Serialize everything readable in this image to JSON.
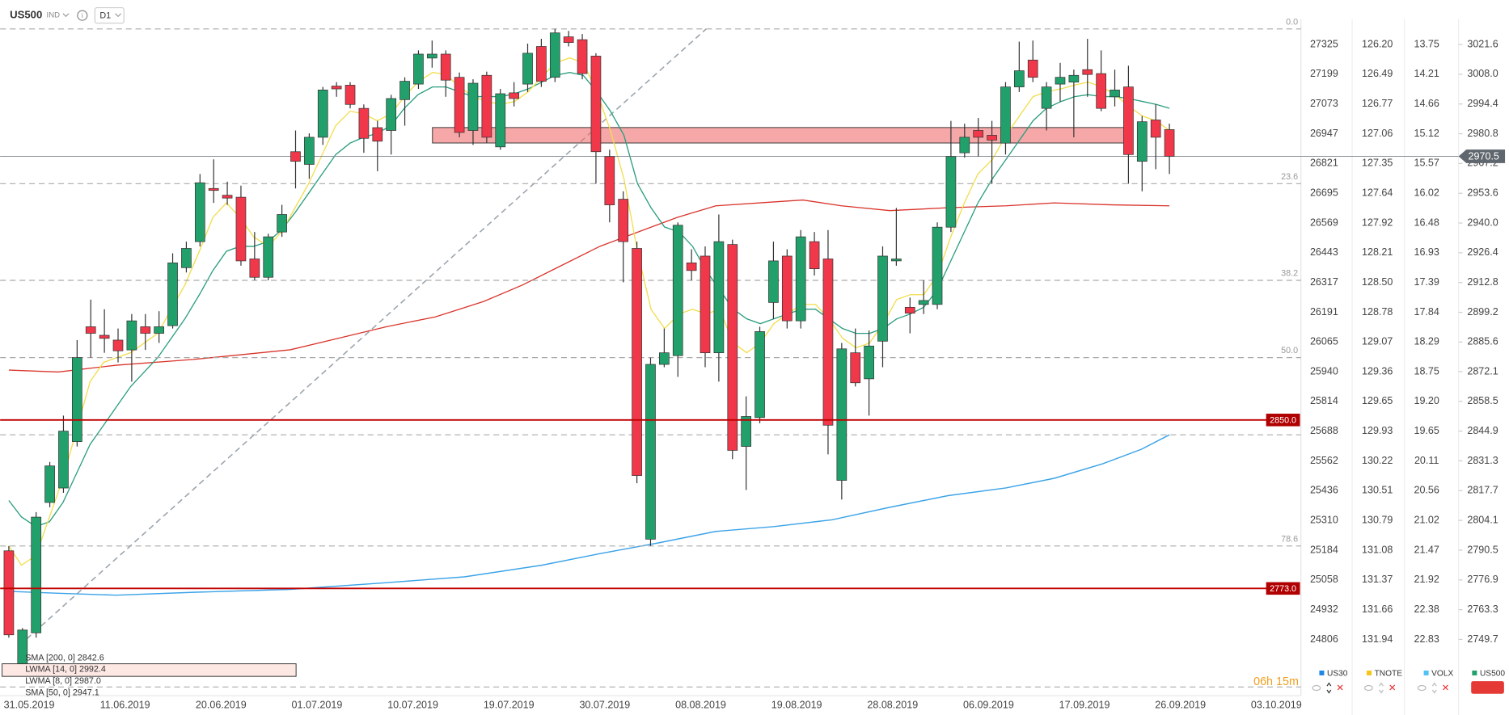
{
  "header": {
    "symbol": "US500",
    "market": "IND",
    "interval": "D1"
  },
  "chart_data": {
    "type": "candlestick",
    "up_color": "#22a06b",
    "down_color": "#f0384a",
    "ylim": [
      2726.2,
      3033.1
    ],
    "yticks": [
      3021.6,
      {
        "value": 3008.0,
        "label": "3008.0"
      },
      2994.4,
      2980.8,
      2967.2,
      2953.6,
      {
        "value": 2940.0,
        "label": "2940.0"
      },
      2926.4,
      2912.8,
      2899.2,
      2885.6,
      2872.1,
      2858.5,
      2844.9,
      2831.3,
      2817.7,
      2804.1,
      2790.5,
      2776.9,
      2763.3,
      2749.7
    ],
    "dates": [
      "31.05.2019",
      "11.06.2019",
      "20.06.2019",
      "01.07.2019",
      "10.07.2019",
      "19.07.2019",
      "30.07.2019",
      "08.08.2019",
      "19.08.2019",
      "28.08.2019",
      "06.09.2019",
      "17.09.2019",
      "26.09.2019",
      "03.10.2019"
    ],
    "ohlc": [
      [
        2790.2,
        2792.4,
        2750.5,
        2751.8
      ],
      [
        2737.2,
        2754.9,
        2732.8,
        2754.0
      ],
      [
        2752.7,
        2807.9,
        2750.5,
        2805.6
      ],
      [
        2812.3,
        2830.8,
        2810.1,
        2829.0
      ],
      [
        2818.9,
        2852.0,
        2816.7,
        2844.9
      ],
      [
        2840.1,
        2886.5,
        2837.9,
        2878.5
      ],
      [
        2892.6,
        2905.0,
        2878.5,
        2889.6
      ],
      [
        2888.7,
        2900.6,
        2880.7,
        2887.3
      ],
      [
        2886.5,
        2891.8,
        2876.3,
        2881.6
      ],
      [
        2882.0,
        2898.4,
        2867.5,
        2895.3
      ],
      [
        2892.6,
        2898.4,
        2882.0,
        2889.6
      ],
      [
        2889.6,
        2899.7,
        2885.2,
        2892.6
      ],
      [
        2893.1,
        2926.2,
        2891.8,
        2921.8
      ],
      [
        2919.6,
        2931.5,
        2917.4,
        2928.4
      ],
      [
        2931.5,
        2962.4,
        2929.3,
        2958.4
      ],
      [
        2955.8,
        2969.1,
        2949.2,
        2954.9
      ],
      [
        2952.7,
        2958.9,
        2948.3,
        2951.4
      ],
      [
        2951.8,
        2957.1,
        2920.5,
        2922.7
      ],
      [
        2923.6,
        2935.9,
        2913.8,
        2915.2
      ],
      [
        2915.2,
        2935.1,
        2913.8,
        2933.7
      ],
      [
        2935.9,
        2948.3,
        2933.7,
        2943.9
      ],
      [
        2972.6,
        2982.3,
        2955.8,
        2968.2
      ],
      [
        2966.8,
        2981.0,
        2960.2,
        2979.2
      ],
      [
        2979.2,
        3002.2,
        2975.7,
        3000.8
      ],
      [
        3002.6,
        3004.4,
        2997.7,
        3001.3
      ],
      [
        3003.0,
        3004.4,
        2992.4,
        2994.2
      ],
      [
        2992.4,
        2994.2,
        2972.1,
        2978.7
      ],
      [
        2983.6,
        2986.7,
        2963.7,
        2977.4
      ],
      [
        2982.3,
        2998.6,
        2971.3,
        2996.9
      ],
      [
        2996.4,
        3006.6,
        2984.5,
        3004.8
      ],
      [
        3003.5,
        3018.9,
        3001.3,
        3017.2
      ],
      [
        3015.4,
        3023.4,
        3011.0,
        3017.2
      ],
      [
        3017.2,
        3018.9,
        2997.7,
        3005.3
      ],
      [
        3006.6,
        3008.8,
        2979.2,
        2981.4
      ],
      [
        2982.3,
        3005.7,
        2975.7,
        3003.9
      ],
      [
        3007.5,
        3009.2,
        2976.5,
        2979.2
      ],
      [
        2974.8,
        3001.3,
        2973.5,
        2999.1
      ],
      [
        2999.5,
        3004.4,
        2993.3,
        2996.9
      ],
      [
        3003.5,
        3022.0,
        2999.9,
        3017.6
      ],
      [
        3020.7,
        3024.2,
        3002.2,
        3004.8
      ],
      [
        3006.6,
        3028.7,
        3004.4,
        3026.9
      ],
      [
        3025.1,
        3027.8,
        3020.7,
        3022.5
      ],
      [
        3023.8,
        3026.4,
        3005.7,
        3008.3
      ],
      [
        3016.3,
        3017.6,
        2958.0,
        2972.6
      ],
      [
        2970.4,
        2973.5,
        2940.3,
        2948.3
      ],
      [
        2950.9,
        2954.5,
        2912.9,
        2931.5
      ],
      [
        2928.4,
        2931.5,
        2821.1,
        2824.6
      ],
      [
        2795.5,
        2878.5,
        2792.4,
        2875.4
      ],
      [
        2875.4,
        2891.8,
        2874.1,
        2880.7
      ],
      [
        2879.4,
        2940.3,
        2869.7,
        2939.0
      ],
      [
        2921.8,
        2928.0,
        2913.8,
        2918.3
      ],
      [
        2924.9,
        2929.3,
        2874.1,
        2880.7
      ],
      [
        2880.7,
        2943.9,
        2867.5,
        2931.5
      ],
      [
        2930.2,
        2932.4,
        2832.1,
        2836.1
      ],
      [
        2837.9,
        2860.8,
        2818.0,
        2851.6
      ],
      [
        2851.1,
        2892.6,
        2848.5,
        2890.4
      ],
      [
        2903.7,
        2931.5,
        2896.2,
        2922.7
      ],
      [
        2924.9,
        2928.0,
        2891.8,
        2895.3
      ],
      [
        2895.3,
        2936.8,
        2891.8,
        2933.7
      ],
      [
        2931.5,
        2935.9,
        2916.0,
        2919.1
      ],
      [
        2923.6,
        2936.8,
        2834.3,
        2847.6
      ],
      [
        2822.4,
        2885.2,
        2813.6,
        2882.5
      ],
      [
        2880.7,
        2891.8,
        2865.3,
        2867.0
      ],
      [
        2868.8,
        2890.9,
        2852.0,
        2883.8
      ],
      [
        2886.0,
        2929.3,
        2874.1,
        2924.9
      ],
      [
        2922.7,
        2946.9,
        2920.5,
        2923.6
      ],
      [
        2901.5,
        2905.9,
        2889.6,
        2898.8
      ],
      [
        2902.8,
        2913.8,
        2898.4,
        2904.6
      ],
      [
        2902.8,
        2940.3,
        2900.6,
        2938.1
      ],
      [
        2938.1,
        2986.7,
        2935.9,
        2970.4
      ],
      [
        2972.1,
        2985.4,
        2969.9,
        2979.2
      ],
      [
        2982.3,
        2988.0,
        2970.4,
        2979.2
      ],
      [
        2980.1,
        2986.7,
        2958.0,
        2977.9
      ],
      [
        2976.5,
        3004.4,
        2971.3,
        3002.2
      ],
      [
        3002.2,
        3022.9,
        2999.9,
        3009.6
      ],
      [
        3014.5,
        3023.4,
        3004.4,
        3006.6
      ],
      [
        2992.4,
        3004.4,
        2982.3,
        3002.2
      ],
      [
        3003.5,
        3013.2,
        2995.5,
        3006.6
      ],
      [
        3004.4,
        3010.1,
        2979.2,
        3007.5
      ],
      [
        3010.1,
        3024.2,
        2997.7,
        3007.9
      ],
      [
        3008.3,
        3018.9,
        2991.1,
        2992.4
      ],
      [
        2997.7,
        3010.1,
        2993.3,
        3000.8
      ],
      [
        3002.2,
        3011.9,
        2958.0,
        2971.3
      ],
      [
        2968.2,
        2988.9,
        2954.5,
        2986.3
      ],
      [
        2987.1,
        2994.2,
        2964.6,
        2979.2
      ],
      [
        2982.7,
        2985.4,
        2962.4,
        2970.5
      ]
    ],
    "fib_levels": [
      {
        "value": 3028.7,
        "label": "0.0"
      },
      {
        "value": 2958.0,
        "label": "23.6"
      },
      {
        "value": 2913.8,
        "label": "38.2"
      },
      {
        "value": 2878.5,
        "label": "50.0"
      },
      {
        "value": 2792.4,
        "label": "78.6"
      }
    ],
    "levels": [
      {
        "value": 2850,
        "label": "2850.0"
      },
      {
        "value": 2773,
        "label": "2773.0"
      }
    ],
    "last_price": {
      "value": 2970.5,
      "label": "2970.5"
    }
  },
  "other_axes": [
    {
      "name": "US30",
      "labels": [
        "27325",
        "27199",
        "27073",
        "26947",
        "26821",
        "26695",
        "26569",
        "26443",
        "26317",
        "26191",
        "26065",
        "25940",
        "25814",
        "25688",
        "25562",
        "25436",
        "25310",
        "25184",
        "25058",
        "24932",
        "24806"
      ]
    },
    {
      "name": "TNOTE",
      "labels": [
        "126.20",
        "126.49",
        "126.77",
        "127.06",
        "127.35",
        "127.64",
        "127.92",
        "128.21",
        "128.50",
        "128.78",
        "129.07",
        "129.36",
        "129.65",
        "129.93",
        "130.22",
        "130.51",
        "130.79",
        "131.08",
        "131.37",
        "131.66",
        "131.94"
      ]
    },
    {
      "name": "VOLX",
      "labels": [
        "13.75",
        "14.21",
        "14.66",
        "15.12",
        "15.57",
        "16.02",
        "16.48",
        "16.93",
        "17.39",
        "17.84",
        "18.29",
        "18.75",
        "19.20",
        "19.65",
        "20.11",
        "20.56",
        "21.02",
        "21.47",
        "21.92",
        "22.38",
        "22.83"
      ]
    }
  ],
  "indicators": [
    "SMA [200, 0] 2842.6",
    "LWMA [14, 0] 2992.4",
    "LWMA [8, 0] 2987.0",
    "SMA [50, 0] 2947.1"
  ],
  "timer": "06h 15m",
  "legend": [
    "US30",
    "TNOTE",
    "VOLX",
    "US500"
  ]
}
